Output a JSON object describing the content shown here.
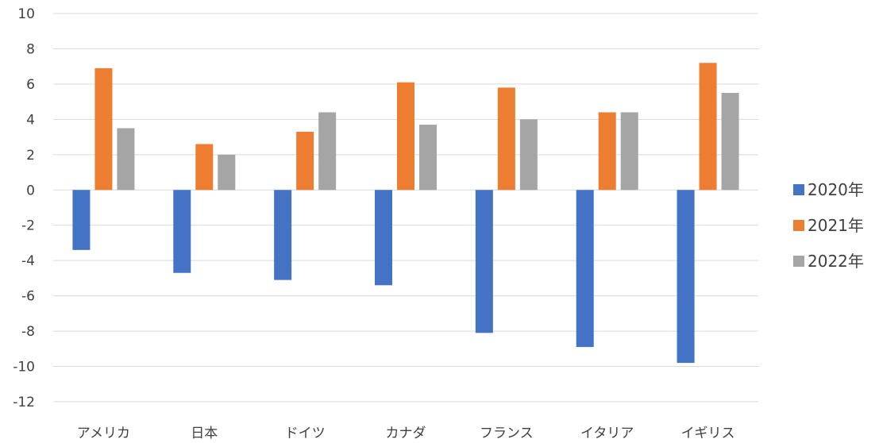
{
  "chart_data": {
    "type": "bar",
    "categories": [
      "アメリカ",
      "日本",
      "ドイツ",
      "カナダ",
      "フランス",
      "イタリア",
      "イギリス"
    ],
    "series": [
      {
        "name": "2020年",
        "color": "#4472c4",
        "values": [
          -3.4,
          -4.7,
          -5.1,
          -5.4,
          -8.1,
          -8.9,
          -9.8
        ]
      },
      {
        "name": "2021年",
        "color": "#ed7d31",
        "values": [
          6.9,
          2.6,
          3.3,
          6.1,
          5.8,
          4.4,
          7.2
        ]
      },
      {
        "name": "2022年",
        "color": "#a5a5a5",
        "values": [
          3.5,
          2.0,
          4.4,
          3.7,
          4.0,
          4.4,
          5.5
        ]
      }
    ],
    "ylim": [
      -12,
      10
    ],
    "yticks": [
      10,
      8,
      6,
      4,
      2,
      0,
      -2,
      -4,
      -6,
      -8,
      -10,
      -12
    ],
    "grid": true,
    "legend_position": "right"
  }
}
